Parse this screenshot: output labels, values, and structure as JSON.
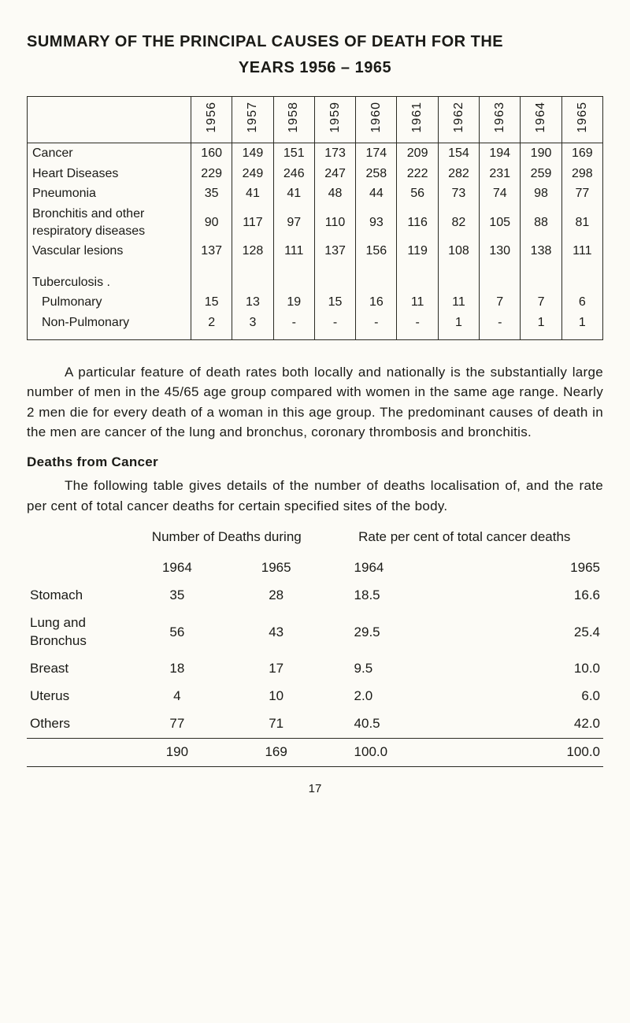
{
  "title_line1": "SUMMARY OF THE PRINCIPAL CAUSES OF DEATH FOR THE",
  "title_line2": "YEARS 1956 – 1965",
  "table1": {
    "years": [
      "1956",
      "1957",
      "1958",
      "1959",
      "1960",
      "1961",
      "1962",
      "1963",
      "1964",
      "1965"
    ],
    "rows": [
      {
        "label": "Cancer",
        "vals": [
          "160",
          "149",
          "151",
          "173",
          "174",
          "209",
          "154",
          "194",
          "190",
          "169"
        ]
      },
      {
        "label": "Heart Diseases",
        "vals": [
          "229",
          "249",
          "246",
          "247",
          "258",
          "222",
          "282",
          "231",
          "259",
          "298"
        ]
      },
      {
        "label": "Pneumonia",
        "vals": [
          "35",
          "41",
          "41",
          "48",
          "44",
          "56",
          "73",
          "74",
          "98",
          "77"
        ]
      },
      {
        "label": "Bronchitis and other respiratory diseases",
        "vals": [
          "90",
          "117",
          "97",
          "110",
          "93",
          "116",
          "82",
          "105",
          "88",
          "81"
        ]
      },
      {
        "label": "Vascular lesions",
        "vals": [
          "137",
          "128",
          "111",
          "137",
          "156",
          "119",
          "108",
          "130",
          "138",
          "111"
        ]
      },
      {
        "label": "Tuberculosis .",
        "vals": [
          "",
          "",
          "",
          "",
          "",
          "",
          "",
          "",
          "",
          ""
        ]
      },
      {
        "label": "Pulmonary",
        "indent": true,
        "vals": [
          "15",
          "13",
          "19",
          "15",
          "16",
          "11",
          "11",
          "7",
          "7",
          "6"
        ]
      },
      {
        "label": "Non-Pulmonary",
        "indent": true,
        "vals": [
          "2",
          "3",
          "-",
          "-",
          "-",
          "-",
          "1",
          "-",
          "1",
          "1"
        ]
      }
    ]
  },
  "para1": "A particular feature of death rates both locally and nationally is the substantially large number of men in the 45/65 age group compared with women in the same age range.  Nearly 2 men die for every death of a woman in this age group.  The predominant causes of death in the men are cancer of the lung and bronchus, coronary thrombosis and bronchitis.",
  "subhead1": "Deaths from Cancer",
  "para2": "The following table gives details of the number of deaths localisation of, and the rate per cent of total cancer deaths for certain specified sites of the body.",
  "table2": {
    "h1": "Number of Deaths during",
    "h2": "Rate per cent of total cancer deaths",
    "sub": [
      "1964",
      "1965",
      "1964",
      "1965"
    ],
    "rows": [
      {
        "label": "Stomach",
        "vals": [
          "35",
          "28",
          "18.5",
          "16.6"
        ]
      },
      {
        "label": "Lung and Bronchus",
        "vals": [
          "56",
          "43",
          "29.5",
          "25.4"
        ]
      },
      {
        "label": "Breast",
        "vals": [
          "18",
          "17",
          "9.5",
          "10.0"
        ]
      },
      {
        "label": "Uterus",
        "vals": [
          "4",
          "10",
          "2.0",
          "6.0"
        ]
      },
      {
        "label": "Others",
        "vals": [
          "77",
          "71",
          "40.5",
          "42.0"
        ]
      }
    ],
    "total": {
      "label": "",
      "vals": [
        "190",
        "169",
        "100.0",
        "100.0"
      ]
    }
  },
  "pagenum": "17"
}
